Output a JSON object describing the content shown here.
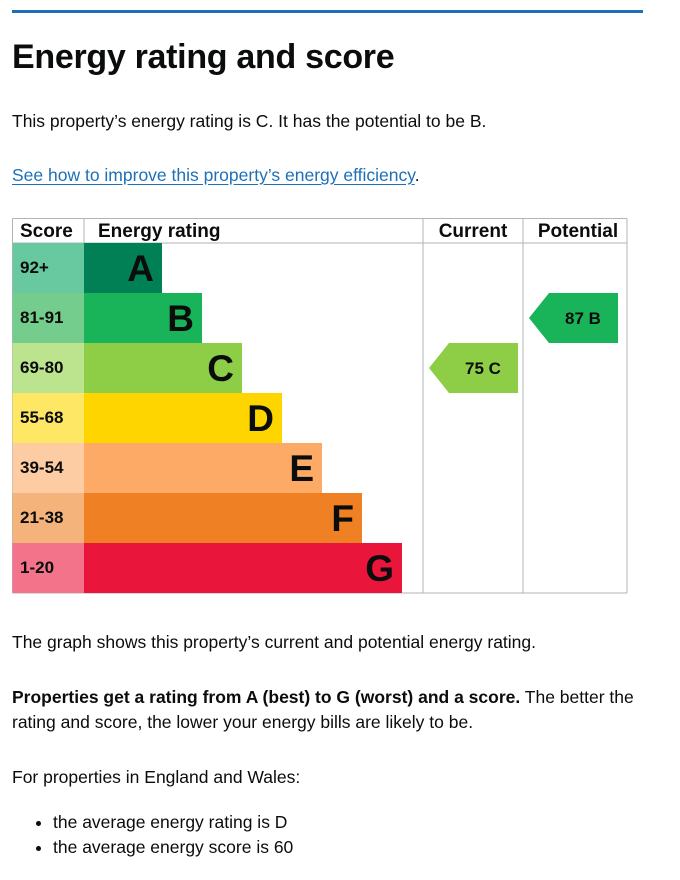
{
  "page": {
    "title": "Energy rating and score",
    "intro": "This property’s energy rating is C. It has the potential to be B.",
    "improve_link": "See how to improve this property’s energy efficiency",
    "improve_link_suffix": ".",
    "graph_text": "The graph shows this property’s current and potential energy rating.",
    "rating_bold": "Properties get a rating from A (best) to G (worst) and a score.",
    "rating_rest": " The better the rating and score, the lower your energy bills are likely to be.",
    "eng_wales": "For properties in England and Wales:",
    "bullets": [
      "the average energy rating is D",
      "the average energy score is 60"
    ]
  },
  "chart_data": {
    "type": "bar",
    "headers": {
      "score": "Score",
      "rating": "Energy rating",
      "current": "Current",
      "potential": "Potential"
    },
    "bands": [
      {
        "letter": "A",
        "score": "92+",
        "color": "#008054",
        "score_bg": "#68c89f"
      },
      {
        "letter": "B",
        "score": "81-91",
        "color": "#19b459",
        "score_bg": "#74cc8d"
      },
      {
        "letter": "C",
        "score": "69-80",
        "color": "#8dce46",
        "score_bg": "#bce38e"
      },
      {
        "letter": "D",
        "score": "55-68",
        "color": "#ffd500",
        "score_bg": "#ffe766"
      },
      {
        "letter": "E",
        "score": "39-54",
        "color": "#fcaa65",
        "score_bg": "#fdcca3"
      },
      {
        "letter": "F",
        "score": "21-38",
        "color": "#ef8023",
        "score_bg": "#f5b37c"
      },
      {
        "letter": "G",
        "score": "1-20",
        "color": "#e9153b",
        "score_bg": "#f2738a"
      }
    ],
    "current": {
      "value": 75,
      "band": "C",
      "label": "75  C"
    },
    "potential": {
      "value": 87,
      "band": "B",
      "label": "87  B"
    }
  }
}
